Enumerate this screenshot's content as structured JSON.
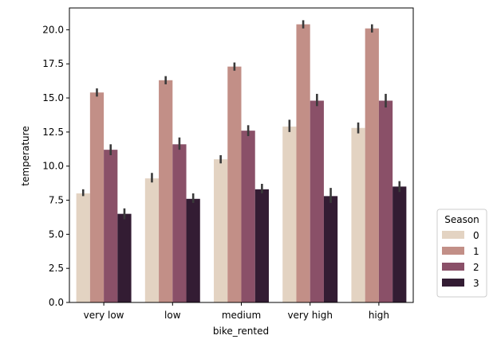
{
  "chart_data": {
    "type": "bar",
    "xlabel": "bike_rented",
    "ylabel": "temperature",
    "categories": [
      "very low",
      "low",
      "medium",
      "very high",
      "high"
    ],
    "ylim": [
      0,
      21.6
    ],
    "yticks": [
      "0.0",
      "2.5",
      "5.0",
      "7.5",
      "10.0",
      "12.5",
      "15.0",
      "17.5",
      "20.0"
    ],
    "grid": false,
    "legend": {
      "title": "Season",
      "placement": "lower-right-outside"
    },
    "series": [
      {
        "name": "0",
        "color": "#e3d3c2",
        "values": [
          8.0,
          9.1,
          10.5,
          12.9,
          12.8
        ],
        "error": [
          [
            7.8,
            8.3
          ],
          [
            8.8,
            9.5
          ],
          [
            10.2,
            10.8
          ],
          [
            12.5,
            13.4
          ],
          [
            12.4,
            13.2
          ]
        ]
      },
      {
        "name": "1",
        "color": "#c28f87",
        "values": [
          15.4,
          16.3,
          17.3,
          20.4,
          20.1
        ],
        "error": [
          [
            15.1,
            15.7
          ],
          [
            16.0,
            16.6
          ],
          [
            17.0,
            17.6
          ],
          [
            20.1,
            20.7
          ],
          [
            19.8,
            20.4
          ]
        ]
      },
      {
        "name": "2",
        "color": "#8a5068",
        "values": [
          11.2,
          11.6,
          12.6,
          14.8,
          14.8
        ],
        "error": [
          [
            10.8,
            11.6
          ],
          [
            11.2,
            12.1
          ],
          [
            12.2,
            13.0
          ],
          [
            14.4,
            15.3
          ],
          [
            14.3,
            15.3
          ]
        ]
      },
      {
        "name": "3",
        "color": "#331c33",
        "values": [
          6.5,
          7.6,
          8.3,
          7.8,
          8.5
        ],
        "error": [
          [
            6.1,
            6.9
          ],
          [
            7.3,
            8.0
          ],
          [
            8.0,
            8.7
          ],
          [
            7.3,
            8.4
          ],
          [
            8.1,
            8.9
          ]
        ]
      }
    ]
  }
}
